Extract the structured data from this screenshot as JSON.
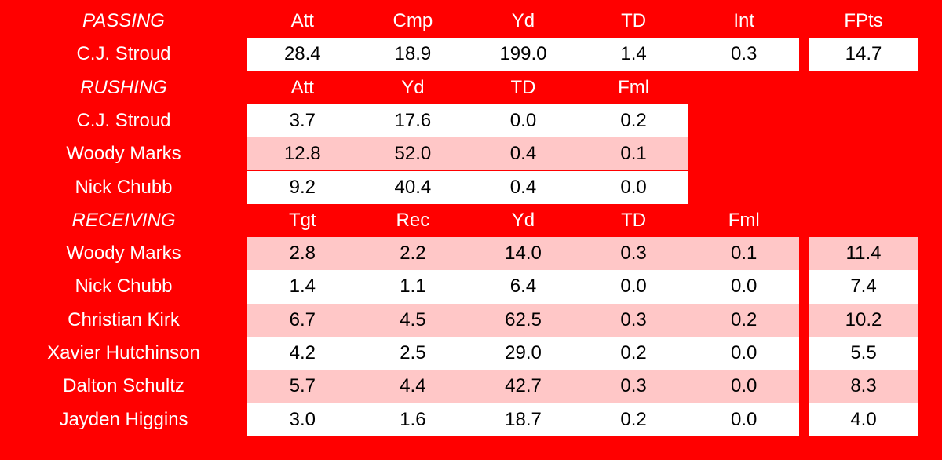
{
  "background": "#ff0000",
  "sections": [
    {
      "title": "PASSING",
      "columns": [
        "Att",
        "Cmp",
        "Yd",
        "TD",
        "Int",
        "FPts"
      ],
      "rows": [
        {
          "player": "C.J. Stroud",
          "fill": "#ffffff",
          "values": [
            "28.4",
            "18.9",
            "199.0",
            "1.4",
            "0.3"
          ],
          "fpts": "14.7"
        }
      ]
    },
    {
      "title": "RUSHING",
      "columns": [
        "Att",
        "Yd",
        "TD",
        "Fml"
      ],
      "rows": [
        {
          "player": "C.J. Stroud",
          "fill": "#ffffff",
          "values": [
            "3.7",
            "17.6",
            "0.0",
            "0.2"
          ]
        },
        {
          "player": "Woody Marks",
          "fill": "#ffc7c7",
          "values": [
            "12.8",
            "52.0",
            "0.4",
            "0.1"
          ]
        },
        {
          "player": "Nick Chubb",
          "fill": "#ffffff",
          "values": [
            "9.2",
            "40.4",
            "0.4",
            "0.0"
          ]
        }
      ]
    },
    {
      "title": "RECEIVING",
      "columns": [
        "Tgt",
        "Rec",
        "Yd",
        "TD",
        "Fml"
      ],
      "rows": [
        {
          "player": "Woody Marks",
          "fill": "#ffc7c7",
          "values": [
            "2.8",
            "2.2",
            "14.0",
            "0.3",
            "0.1"
          ],
          "fpts": "11.4"
        },
        {
          "player": "Nick Chubb",
          "fill": "#ffffff",
          "values": [
            "1.4",
            "1.1",
            "6.4",
            "0.0",
            "0.0"
          ],
          "fpts": "7.4"
        },
        {
          "player": "Christian Kirk",
          "fill": "#ffc7c7",
          "values": [
            "6.7",
            "4.5",
            "62.5",
            "0.3",
            "0.2"
          ],
          "fpts": "10.2"
        },
        {
          "player": "Xavier Hutchinson",
          "fill": "#ffffff",
          "values": [
            "4.2",
            "2.5",
            "29.0",
            "0.2",
            "0.0"
          ],
          "fpts": "5.5"
        },
        {
          "player": "Dalton Schultz",
          "fill": "#ffc7c7",
          "values": [
            "5.7",
            "4.4",
            "42.7",
            "0.3",
            "0.0"
          ],
          "fpts": "8.3"
        },
        {
          "player": "Jayden Higgins",
          "fill": "#ffffff",
          "values": [
            "3.0",
            "1.6",
            "18.7",
            "0.2",
            "0.0"
          ],
          "fpts": "4.0"
        }
      ]
    }
  ]
}
